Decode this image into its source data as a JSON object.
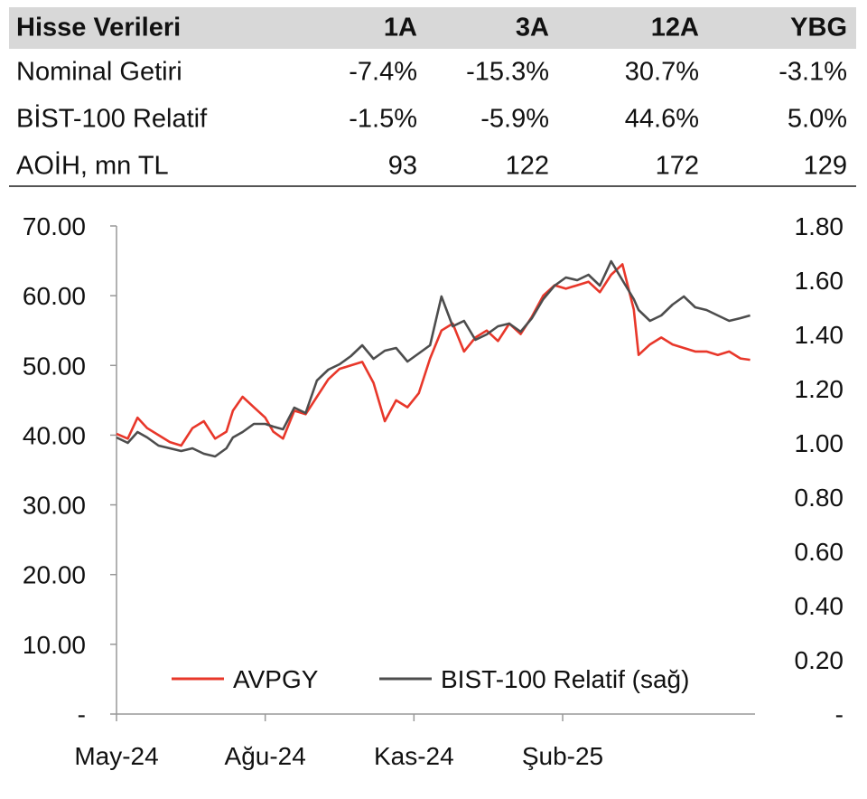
{
  "table": {
    "headers": [
      "Hisse Verileri",
      "1A",
      "3A",
      "12A",
      "YBG"
    ],
    "rows": [
      [
        "Nominal Getiri",
        "-7.4%",
        "-15.3%",
        "30.7%",
        "-3.1%"
      ],
      [
        "BİST-100 Relatif",
        "-1.5%",
        "-5.9%",
        "44.6%",
        "5.0%"
      ],
      [
        "AOİH, mn TL",
        "93",
        "122",
        "172",
        "129"
      ]
    ]
  },
  "chart_data": {
    "type": "line",
    "x_ticks": [
      "May-24",
      "Ağu-24",
      "Kas-24",
      "Şub-25"
    ],
    "x_range": [
      "2024-05-01",
      "2025-05-31"
    ],
    "left_axis": {
      "ticks": [
        "-",
        "10.00",
        "20.00",
        "30.00",
        "40.00",
        "50.00",
        "60.00",
        "70.00"
      ],
      "ylim": [
        0,
        70
      ]
    },
    "right_axis": {
      "ticks": [
        "-",
        "0.20",
        "0.40",
        "0.60",
        "0.80",
        "1.00",
        "1.20",
        "1.40",
        "1.60",
        "1.80"
      ],
      "ylim": [
        0,
        1.8
      ]
    },
    "legend_position": "bottom",
    "grid": false,
    "series": [
      {
        "name": "AVPGY",
        "axis": "left",
        "color": "#e8372a",
        "points": [
          [
            "2024-05-01",
            40.2
          ],
          [
            "2024-05-08",
            39.5
          ],
          [
            "2024-05-14",
            42.5
          ],
          [
            "2024-05-20",
            41.0
          ],
          [
            "2024-05-27",
            40.0
          ],
          [
            "2024-06-03",
            39.0
          ],
          [
            "2024-06-10",
            38.5
          ],
          [
            "2024-06-17",
            41.0
          ],
          [
            "2024-06-24",
            42.0
          ],
          [
            "2024-07-01",
            39.5
          ],
          [
            "2024-07-08",
            40.5
          ],
          [
            "2024-07-12",
            43.5
          ],
          [
            "2024-07-18",
            45.5
          ],
          [
            "2024-07-25",
            44.0
          ],
          [
            "2024-08-01",
            42.5
          ],
          [
            "2024-08-06",
            40.5
          ],
          [
            "2024-08-12",
            39.5
          ],
          [
            "2024-08-19",
            43.5
          ],
          [
            "2024-08-26",
            43.0
          ],
          [
            "2024-09-02",
            45.5
          ],
          [
            "2024-09-09",
            48.0
          ],
          [
            "2024-09-16",
            49.5
          ],
          [
            "2024-09-23",
            50.0
          ],
          [
            "2024-09-30",
            50.5
          ],
          [
            "2024-10-07",
            47.5
          ],
          [
            "2024-10-14",
            42.0
          ],
          [
            "2024-10-21",
            45.0
          ],
          [
            "2024-10-28",
            44.0
          ],
          [
            "2024-11-04",
            46.0
          ],
          [
            "2024-11-11",
            51.0
          ],
          [
            "2024-11-18",
            55.0
          ],
          [
            "2024-11-25",
            56.0
          ],
          [
            "2024-12-02",
            52.0
          ],
          [
            "2024-12-09",
            54.0
          ],
          [
            "2024-12-16",
            55.0
          ],
          [
            "2024-12-23",
            53.5
          ],
          [
            "2024-12-30",
            56.0
          ],
          [
            "2025-01-06",
            54.5
          ],
          [
            "2025-01-13",
            57.0
          ],
          [
            "2025-01-20",
            60.0
          ],
          [
            "2025-01-27",
            61.5
          ],
          [
            "2025-02-03",
            61.0
          ],
          [
            "2025-02-10",
            61.5
          ],
          [
            "2025-02-17",
            62.0
          ],
          [
            "2025-02-24",
            60.5
          ],
          [
            "2025-03-03",
            63.0
          ],
          [
            "2025-03-10",
            64.5
          ],
          [
            "2025-03-17",
            58.0
          ],
          [
            "2025-03-20",
            51.5
          ],
          [
            "2025-03-27",
            53.0
          ],
          [
            "2025-04-03",
            54.0
          ],
          [
            "2025-04-10",
            53.0
          ],
          [
            "2025-04-17",
            52.5
          ],
          [
            "2025-04-24",
            52.0
          ],
          [
            "2025-05-01",
            52.0
          ],
          [
            "2025-05-08",
            51.5
          ],
          [
            "2025-05-15",
            52.0
          ],
          [
            "2025-05-22",
            51.0
          ],
          [
            "2025-05-28",
            50.8
          ]
        ]
      },
      {
        "name": "BIST-100 Relatif (sağ)",
        "axis": "right",
        "color": "#4d4d4d",
        "points": [
          [
            "2024-05-01",
            1.02
          ],
          [
            "2024-05-08",
            1.0
          ],
          [
            "2024-05-14",
            1.04
          ],
          [
            "2024-05-20",
            1.02
          ],
          [
            "2024-05-27",
            0.99
          ],
          [
            "2024-06-03",
            0.98
          ],
          [
            "2024-06-10",
            0.97
          ],
          [
            "2024-06-17",
            0.98
          ],
          [
            "2024-06-24",
            0.96
          ],
          [
            "2024-07-01",
            0.95
          ],
          [
            "2024-07-08",
            0.98
          ],
          [
            "2024-07-12",
            1.02
          ],
          [
            "2024-07-18",
            1.04
          ],
          [
            "2024-07-25",
            1.07
          ],
          [
            "2024-08-01",
            1.07
          ],
          [
            "2024-08-06",
            1.06
          ],
          [
            "2024-08-12",
            1.05
          ],
          [
            "2024-08-19",
            1.13
          ],
          [
            "2024-08-26",
            1.11
          ],
          [
            "2024-09-02",
            1.23
          ],
          [
            "2024-09-09",
            1.27
          ],
          [
            "2024-09-16",
            1.29
          ],
          [
            "2024-09-23",
            1.32
          ],
          [
            "2024-09-30",
            1.36
          ],
          [
            "2024-10-07",
            1.31
          ],
          [
            "2024-10-14",
            1.34
          ],
          [
            "2024-10-21",
            1.35
          ],
          [
            "2024-10-28",
            1.3
          ],
          [
            "2024-11-04",
            1.33
          ],
          [
            "2024-11-11",
            1.36
          ],
          [
            "2024-11-18",
            1.54
          ],
          [
            "2024-11-25",
            1.43
          ],
          [
            "2024-12-02",
            1.45
          ],
          [
            "2024-12-09",
            1.38
          ],
          [
            "2024-12-16",
            1.4
          ],
          [
            "2024-12-23",
            1.43
          ],
          [
            "2024-12-30",
            1.44
          ],
          [
            "2025-01-06",
            1.41
          ],
          [
            "2025-01-13",
            1.46
          ],
          [
            "2025-01-20",
            1.53
          ],
          [
            "2025-01-27",
            1.58
          ],
          [
            "2025-02-03",
            1.61
          ],
          [
            "2025-02-10",
            1.6
          ],
          [
            "2025-02-17",
            1.62
          ],
          [
            "2025-02-24",
            1.58
          ],
          [
            "2025-03-03",
            1.67
          ],
          [
            "2025-03-10",
            1.6
          ],
          [
            "2025-03-17",
            1.53
          ],
          [
            "2025-03-20",
            1.49
          ],
          [
            "2025-03-27",
            1.45
          ],
          [
            "2025-04-03",
            1.47
          ],
          [
            "2025-04-10",
            1.51
          ],
          [
            "2025-04-17",
            1.54
          ],
          [
            "2025-04-24",
            1.5
          ],
          [
            "2025-05-01",
            1.49
          ],
          [
            "2025-05-08",
            1.47
          ],
          [
            "2025-05-15",
            1.45
          ],
          [
            "2025-05-22",
            1.46
          ],
          [
            "2025-05-28",
            1.47
          ]
        ]
      }
    ]
  }
}
